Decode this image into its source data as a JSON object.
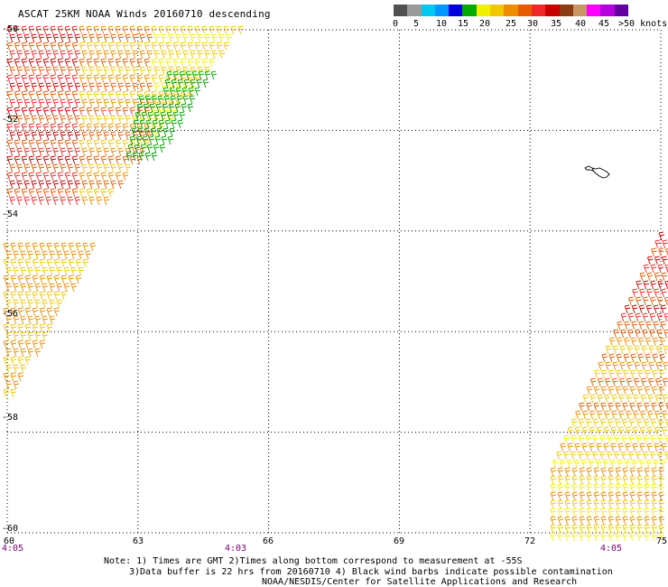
{
  "title": "ASCAT 25KM NOAA Winds 20160710 descending",
  "colorbar": {
    "colors": [
      "#505050",
      "#9a9a9a",
      "#00c8f0",
      "#0096ff",
      "#0000dc",
      "#00aa00",
      "#f0f000",
      "#f0c800",
      "#f08c00",
      "#e65a00",
      "#f02828",
      "#c80000",
      "#8c3c14",
      "#c89664",
      "#ff00ff",
      "#b400dc",
      "#6400a0"
    ],
    "labels": [
      "0",
      "5",
      "10",
      "15",
      "20",
      "25",
      "30",
      "35",
      "40",
      "45",
      ">50 knots"
    ]
  },
  "map": {
    "lon_range": [
      60,
      75
    ],
    "lat_range": [
      -60,
      -50
    ],
    "lon_ticks": [
      "60",
      "63",
      "66",
      "69",
      "72",
      "75"
    ],
    "lat_ticks": [
      "-50",
      "-52",
      "-54",
      "-56",
      "-58",
      "-60"
    ],
    "pass_times": [
      {
        "label": "4:05",
        "lon": 60
      },
      {
        "label": "4:03",
        "lon": 65.3
      },
      {
        "label": "4:05",
        "lon": 74.4
      }
    ],
    "grid": "dotted"
  },
  "notes": {
    "line1": "Note: 1) Times are GMT 2)Times along bottom correspond to measurement at -55S",
    "line2": "3)Data buffer is 22 hrs from 20160710 4) Black wind barbs indicate possible contamination",
    "line3": "NOAA/NESDIS/Center for Satellite Applications and Research"
  }
}
